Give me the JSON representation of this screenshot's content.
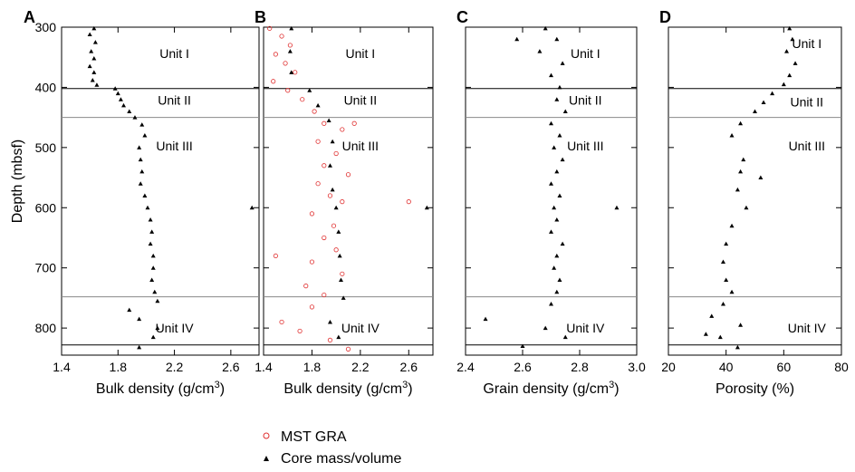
{
  "y_axis": {
    "label": "Depth (mbsf)",
    "range": [
      300,
      845
    ],
    "ticks": [
      "300",
      "400",
      "500",
      "600",
      "700",
      "800"
    ]
  },
  "unit_boundaries": [
    {
      "depth": 402,
      "color": "#000000"
    },
    {
      "depth": 450,
      "color": "#8a8a8a"
    },
    {
      "depth": 748,
      "color": "#8a8a8a"
    },
    {
      "depth": 828,
      "color": "#000000"
    }
  ],
  "legend": {
    "gra_label": "MST GRA",
    "core_label": "Core mass/volume",
    "gra_color": "#e03030",
    "core_color": "#000000"
  },
  "chart_data": [
    {
      "type": "scatter",
      "panel": "A",
      "xlabel": "Bulk density (g/cm",
      "xlabel_sup": "3",
      "xlabel_end": ")",
      "xlim": [
        1.4,
        2.8
      ],
      "xticks": [
        "1.4",
        "1.8",
        "2.2",
        "2.6"
      ],
      "units": [
        {
          "name": "Unit I",
          "depth": 344,
          "x": 2.2
        },
        {
          "name": "Unit II",
          "depth": 421,
          "x": 2.2
        },
        {
          "name": "Unit III",
          "depth": 497,
          "x": 2.2
        },
        {
          "name": "Unit IV",
          "depth": 800,
          "x": 2.2
        }
      ],
      "series": [
        {
          "name": "Core mass/volume",
          "points": [
            [
              1.63,
              302
            ],
            [
              1.6,
              312
            ],
            [
              1.64,
              325
            ],
            [
              1.61,
              340
            ],
            [
              1.63,
              352
            ],
            [
              1.6,
              365
            ],
            [
              1.63,
              375
            ],
            [
              1.62,
              388
            ],
            [
              1.65,
              396
            ],
            [
              1.78,
              402
            ],
            [
              1.8,
              410
            ],
            [
              1.82,
              420
            ],
            [
              1.84,
              430
            ],
            [
              1.88,
              440
            ],
            [
              1.92,
              450
            ],
            [
              1.97,
              462
            ],
            [
              1.99,
              480
            ],
            [
              1.95,
              500
            ],
            [
              1.96,
              520
            ],
            [
              1.97,
              540
            ],
            [
              1.96,
              560
            ],
            [
              1.99,
              580
            ],
            [
              2.01,
              600
            ],
            [
              2.03,
              620
            ],
            [
              2.04,
              640
            ],
            [
              2.03,
              660
            ],
            [
              2.05,
              680
            ],
            [
              2.05,
              700
            ],
            [
              2.04,
              720
            ],
            [
              2.06,
              740
            ],
            [
              2.08,
              755
            ],
            [
              1.88,
              770
            ],
            [
              1.95,
              785
            ],
            [
              2.08,
              800
            ],
            [
              2.05,
              815
            ],
            [
              1.95,
              832
            ],
            [
              2.75,
              600
            ]
          ]
        }
      ]
    },
    {
      "type": "scatter",
      "panel": "B",
      "xlabel": "Bulk density (g/cm",
      "xlabel_sup": "3",
      "xlabel_end": ")",
      "xlim": [
        1.4,
        2.8
      ],
      "xticks": [
        "1.4",
        "1.8",
        "2.2",
        "2.6"
      ],
      "units": [
        {
          "name": "Unit I",
          "depth": 344,
          "x": 2.2
        },
        {
          "name": "Unit II",
          "depth": 421,
          "x": 2.2
        },
        {
          "name": "Unit III",
          "depth": 497,
          "x": 2.2
        },
        {
          "name": "Unit IV",
          "depth": 800,
          "x": 2.2
        }
      ],
      "series": [
        {
          "name": "MST GRA",
          "points": [
            [
              1.45,
              302
            ],
            [
              1.55,
              315
            ],
            [
              1.62,
              330
            ],
            [
              1.5,
              345
            ],
            [
              1.58,
              360
            ],
            [
              1.66,
              375
            ],
            [
              1.48,
              390
            ],
            [
              1.6,
              405
            ],
            [
              1.72,
              420
            ],
            [
              1.82,
              440
            ],
            [
              1.9,
              460
            ],
            [
              2.05,
              470
            ],
            [
              1.85,
              490
            ],
            [
              2.0,
              510
            ],
            [
              1.9,
              530
            ],
            [
              2.1,
              545
            ],
            [
              1.85,
              560
            ],
            [
              1.95,
              580
            ],
            [
              2.05,
              590
            ],
            [
              1.8,
              610
            ],
            [
              1.98,
              630
            ],
            [
              1.9,
              650
            ],
            [
              2.0,
              670
            ],
            [
              1.8,
              690
            ],
            [
              2.05,
              710
            ],
            [
              1.75,
              730
            ],
            [
              1.9,
              745
            ],
            [
              1.8,
              765
            ],
            [
              1.55,
              790
            ],
            [
              1.7,
              805
            ],
            [
              1.95,
              820
            ],
            [
              2.1,
              835
            ],
            [
              1.5,
              680
            ],
            [
              2.6,
              590
            ],
            [
              2.15,
              460
            ]
          ]
        },
        {
          "name": "Core mass/volume",
          "points": [
            [
              1.63,
              302
            ],
            [
              1.62,
              340
            ],
            [
              1.63,
              375
            ],
            [
              1.78,
              405
            ],
            [
              1.85,
              430
            ],
            [
              1.94,
              455
            ],
            [
              1.97,
              490
            ],
            [
              1.95,
              530
            ],
            [
              1.97,
              570
            ],
            [
              2.0,
              600
            ],
            [
              2.02,
              640
            ],
            [
              2.03,
              680
            ],
            [
              2.04,
              720
            ],
            [
              2.06,
              750
            ],
            [
              1.95,
              790
            ],
            [
              2.02,
              815
            ],
            [
              2.75,
              600
            ]
          ]
        }
      ]
    },
    {
      "type": "scatter",
      "panel": "C",
      "xlabel": "Grain density (g/cm",
      "xlabel_sup": "3",
      "xlabel_end": ")",
      "xlim": [
        2.4,
        3.0
      ],
      "xticks": [
        "2.4",
        "2.6",
        "2.8",
        "3.0"
      ],
      "units": [
        {
          "name": "Unit I",
          "depth": 344,
          "x": 2.82
        },
        {
          "name": "Unit II",
          "depth": 421,
          "x": 2.82
        },
        {
          "name": "Unit III",
          "depth": 497,
          "x": 2.82
        },
        {
          "name": "Unit IV",
          "depth": 800,
          "x": 2.82
        }
      ],
      "series": [
        {
          "name": "Core mass/volume",
          "points": [
            [
              2.68,
              302
            ],
            [
              2.72,
              320
            ],
            [
              2.66,
              340
            ],
            [
              2.74,
              360
            ],
            [
              2.7,
              380
            ],
            [
              2.73,
              400
            ],
            [
              2.72,
              420
            ],
            [
              2.75,
              440
            ],
            [
              2.7,
              460
            ],
            [
              2.73,
              480
            ],
            [
              2.71,
              500
            ],
            [
              2.74,
              520
            ],
            [
              2.72,
              540
            ],
            [
              2.7,
              560
            ],
            [
              2.73,
              580
            ],
            [
              2.71,
              600
            ],
            [
              2.72,
              620
            ],
            [
              2.7,
              640
            ],
            [
              2.74,
              660
            ],
            [
              2.72,
              680
            ],
            [
              2.71,
              700
            ],
            [
              2.73,
              720
            ],
            [
              2.72,
              740
            ],
            [
              2.7,
              760
            ],
            [
              2.47,
              785
            ],
            [
              2.68,
              800
            ],
            [
              2.75,
              815
            ],
            [
              2.6,
              830
            ],
            [
              2.93,
              600
            ],
            [
              2.58,
              320
            ]
          ]
        }
      ]
    },
    {
      "type": "scatter",
      "panel": "D",
      "xlabel": "Porosity (%)",
      "xlabel_sup": "",
      "xlabel_end": "",
      "xlim": [
        20,
        80
      ],
      "xticks": [
        "20",
        "40",
        "60",
        "80"
      ],
      "units": [
        {
          "name": "Unit I",
          "depth": 327,
          "x": 68
        },
        {
          "name": "Unit II",
          "depth": 424,
          "x": 68
        },
        {
          "name": "Unit III",
          "depth": 497,
          "x": 68
        },
        {
          "name": "Unit IV",
          "depth": 800,
          "x": 68
        }
      ],
      "series": [
        {
          "name": "Core mass/volume",
          "points": [
            [
              62,
              302
            ],
            [
              63,
              320
            ],
            [
              61,
              340
            ],
            [
              64,
              360
            ],
            [
              62,
              380
            ],
            [
              60,
              395
            ],
            [
              56,
              410
            ],
            [
              53,
              425
            ],
            [
              50,
              440
            ],
            [
              45,
              460
            ],
            [
              42,
              480
            ],
            [
              46,
              520
            ],
            [
              45,
              540
            ],
            [
              44,
              570
            ],
            [
              47,
              600
            ],
            [
              42,
              630
            ],
            [
              40,
              660
            ],
            [
              39,
              690
            ],
            [
              40,
              720
            ],
            [
              42,
              740
            ],
            [
              39,
              760
            ],
            [
              35,
              780
            ],
            [
              45,
              795
            ],
            [
              38,
              815
            ],
            [
              44,
              832
            ],
            [
              52,
              550
            ],
            [
              33,
              810
            ]
          ]
        }
      ]
    }
  ]
}
